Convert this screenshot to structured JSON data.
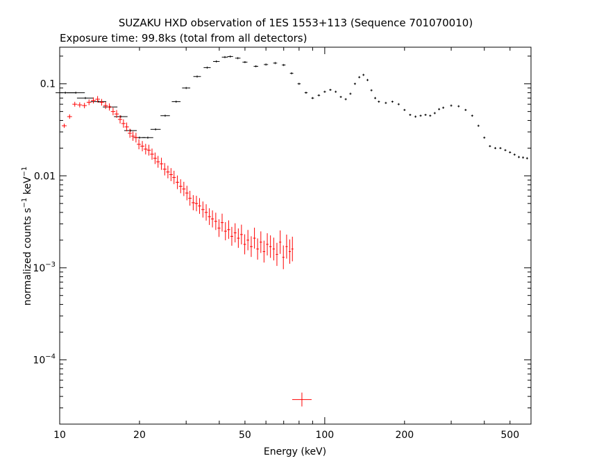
{
  "chart_data": {
    "type": "scatter",
    "title": "SUZAKU HXD observation of 1ES 1553+113 (Sequence 701070010)",
    "subtitle": "Exposure time: 99.8ks (total from all detectors)",
    "xlabel": "Energy (keV)",
    "ylabel": "normalized counts s^-1 keV^-1",
    "x_scale": "log",
    "y_scale": "log",
    "xlim": [
      10,
      600
    ],
    "ylim": [
      2e-05,
      0.25
    ],
    "x_ticks": [
      {
        "value": 10,
        "label": "10"
      },
      {
        "value": 20,
        "label": "20"
      },
      {
        "value": 50,
        "label": "50"
      },
      {
        "value": 100,
        "label": "100"
      },
      {
        "value": 200,
        "label": "200"
      },
      {
        "value": 500,
        "label": "500"
      }
    ],
    "y_ticks": [
      {
        "value": 0.1,
        "label": "0.1",
        "base": "",
        "exp": ""
      },
      {
        "value": 0.01,
        "label": "0.01",
        "base": "",
        "exp": ""
      },
      {
        "value": 0.001,
        "label": "",
        "base": "10",
        "exp": "−3"
      },
      {
        "value": 0.0001,
        "label": "",
        "base": "10",
        "exp": "−4"
      }
    ],
    "grid": false,
    "series": [
      {
        "color": "#000000",
        "x": [
          10.5,
          11.5,
          12.5,
          14,
          15.5,
          17,
          18.5,
          20,
          21.5,
          23,
          25,
          27.5,
          30,
          33,
          36,
          39,
          42,
          44,
          47,
          50,
          55,
          60,
          65,
          70,
          75,
          80,
          85,
          90,
          95,
          100,
          105,
          110,
          115,
          120,
          125,
          130,
          135,
          140,
          145,
          150,
          155,
          160,
          170,
          180,
          190,
          200,
          210,
          220,
          230,
          240,
          250,
          260,
          270,
          280,
          300,
          320,
          340,
          360,
          380,
          400,
          420,
          440,
          460,
          480,
          500,
          520,
          540,
          560,
          580
        ],
        "y": [
          0.08,
          0.08,
          0.07,
          0.064,
          0.056,
          0.044,
          0.031,
          0.026,
          0.026,
          0.032,
          0.045,
          0.064,
          0.09,
          0.12,
          0.15,
          0.175,
          0.195,
          0.198,
          0.19,
          0.172,
          0.155,
          0.162,
          0.168,
          0.16,
          0.13,
          0.1,
          0.08,
          0.07,
          0.075,
          0.082,
          0.086,
          0.082,
          0.072,
          0.068,
          0.078,
          0.1,
          0.118,
          0.125,
          0.11,
          0.085,
          0.07,
          0.064,
          0.062,
          0.064,
          0.06,
          0.052,
          0.046,
          0.044,
          0.045,
          0.046,
          0.045,
          0.048,
          0.053,
          0.055,
          0.058,
          0.057,
          0.052,
          0.045,
          0.035,
          0.026,
          0.021,
          0.02,
          0.02,
          0.019,
          0.018,
          0.017,
          0.016,
          0.0158,
          0.0155
        ]
      },
      {
        "color": "#ff0000",
        "x": [
          10.4,
          10.9,
          11.4,
          11.9,
          12.4,
          12.9,
          13.4,
          13.9,
          14.4,
          14.9,
          15.4,
          15.9,
          16.4,
          16.9,
          17.4,
          17.9,
          18.4,
          18.9,
          19.4,
          19.9,
          20.5,
          21.1,
          21.7,
          22.3,
          22.9,
          23.5,
          24.2,
          24.9,
          25.6,
          26.3,
          27.0,
          27.8,
          28.6,
          29.4,
          30.2,
          31.0,
          31.9,
          32.8,
          33.7,
          34.7,
          35.7,
          36.7,
          37.7,
          38.8,
          39.9,
          41.0,
          42.2,
          43.4,
          44.6,
          45.9,
          47.2,
          48.5,
          49.9,
          51.3,
          52.8,
          54.3,
          55.8,
          57.4,
          59.0,
          60.7,
          62.4,
          64.2,
          66.0,
          67.9,
          69.8,
          71.8,
          73.8,
          75.5,
          82
        ],
        "y": [
          0.035,
          0.044,
          0.06,
          0.059,
          0.058,
          0.063,
          0.066,
          0.068,
          0.063,
          0.058,
          0.056,
          0.05,
          0.047,
          0.041,
          0.037,
          0.034,
          0.029,
          0.027,
          0.026,
          0.022,
          0.021,
          0.0195,
          0.019,
          0.0172,
          0.0155,
          0.0142,
          0.0135,
          0.0118,
          0.011,
          0.0103,
          0.0096,
          0.0085,
          0.0077,
          0.0072,
          0.0065,
          0.0057,
          0.0051,
          0.005,
          0.0047,
          0.0043,
          0.004,
          0.0036,
          0.0034,
          0.0032,
          0.0027,
          0.0031,
          0.0025,
          0.0026,
          0.0022,
          0.0024,
          0.0021,
          0.0023,
          0.0018,
          0.002,
          0.0017,
          0.0021,
          0.0016,
          0.0019,
          0.0015,
          0.0018,
          0.0017,
          0.0016,
          0.0014,
          0.0019,
          0.0013,
          0.0017,
          0.0015,
          0.0016,
          3.7e-05
        ]
      }
    ]
  }
}
